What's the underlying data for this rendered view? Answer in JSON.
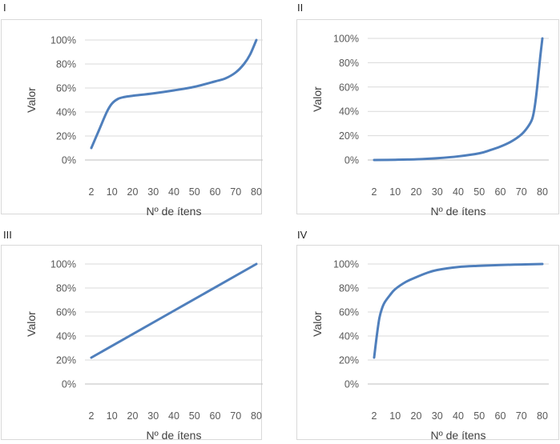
{
  "panel_labels": [
    "I",
    "II",
    "III",
    "IV"
  ],
  "chart_data": [
    {
      "type": "line",
      "panel": "I",
      "xlabel": "Nº de ítens",
      "ylabel": "Valor",
      "x_ticks": [
        "2",
        "10",
        "20",
        "30",
        "40",
        "50",
        "60",
        "70",
        "80"
      ],
      "y_ticks": [
        "0%",
        "20%",
        "40%",
        "60%",
        "80%",
        "100%"
      ],
      "ylim": [
        0,
        1
      ],
      "series_color": "#4f7fbc",
      "series": [
        {
          "x": [
            2,
            5,
            8,
            10,
            13,
            16,
            20,
            30,
            40,
            50,
            60,
            65,
            70,
            74,
            77,
            80
          ],
          "y": [
            0.1,
            0.25,
            0.4,
            0.47,
            0.51,
            0.525,
            0.535,
            0.555,
            0.58,
            0.61,
            0.655,
            0.68,
            0.73,
            0.8,
            0.88,
            1.0
          ]
        }
      ]
    },
    {
      "type": "line",
      "panel": "II",
      "xlabel": "Nº de ítens",
      "ylabel": "Valor",
      "x_ticks": [
        "2",
        "10",
        "20",
        "30",
        "40",
        "50",
        "60",
        "70",
        "80"
      ],
      "y_ticks": [
        "0%",
        "20%",
        "40%",
        "60%",
        "80%",
        "100%"
      ],
      "ylim": [
        0,
        1
      ],
      "series_color": "#4f7fbc",
      "series": [
        {
          "x": [
            2,
            10,
            20,
            30,
            40,
            50,
            55,
            60,
            65,
            70,
            73,
            75,
            76,
            77,
            78,
            79,
            80
          ],
          "y": [
            0.0,
            0.002,
            0.006,
            0.015,
            0.03,
            0.055,
            0.08,
            0.11,
            0.15,
            0.21,
            0.27,
            0.33,
            0.4,
            0.52,
            0.68,
            0.85,
            1.0
          ]
        }
      ]
    },
    {
      "type": "line",
      "panel": "III",
      "xlabel": "Nº de ítens",
      "ylabel": "Valor",
      "x_ticks": [
        "2",
        "10",
        "20",
        "30",
        "40",
        "50",
        "60",
        "70",
        "80"
      ],
      "y_ticks": [
        "0%",
        "20%",
        "40%",
        "60%",
        "80%",
        "100%"
      ],
      "ylim": [
        0,
        1
      ],
      "series_color": "#4f7fbc",
      "series": [
        {
          "x": [
            2,
            80
          ],
          "y": [
            0.22,
            1.0
          ]
        }
      ]
    },
    {
      "type": "line",
      "panel": "IV",
      "xlabel": "Nº de ítens",
      "ylabel": "Valor",
      "x_ticks": [
        "2",
        "10",
        "20",
        "30",
        "40",
        "50",
        "60",
        "70",
        "80"
      ],
      "y_ticks": [
        "0%",
        "20%",
        "40%",
        "60%",
        "80%",
        "100%"
      ],
      "ylim": [
        0,
        1
      ],
      "series_color": "#4f7fbc",
      "series": [
        {
          "x": [
            2,
            3,
            4,
            5,
            6,
            8,
            10,
            15,
            20,
            25,
            30,
            40,
            50,
            60,
            70,
            80
          ],
          "y": [
            0.22,
            0.4,
            0.55,
            0.63,
            0.68,
            0.74,
            0.79,
            0.85,
            0.89,
            0.925,
            0.95,
            0.975,
            0.985,
            0.992,
            0.996,
            1.0
          ]
        }
      ]
    }
  ]
}
